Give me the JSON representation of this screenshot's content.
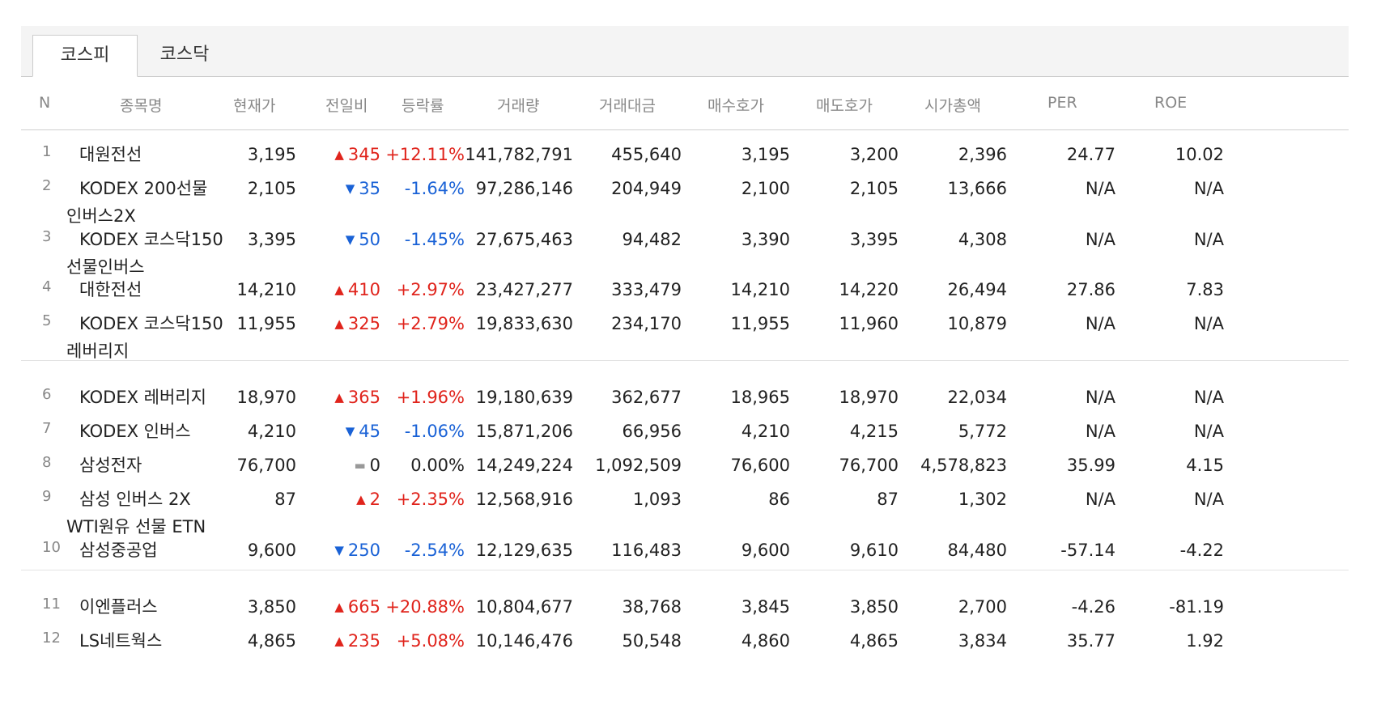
{
  "tabs": [
    {
      "label": "코스피",
      "active": true
    },
    {
      "label": "코스닥",
      "active": false
    }
  ],
  "columns": [
    "N",
    "종목명",
    "현재가",
    "전일비",
    "등락률",
    "거래량",
    "거래대금",
    "매수호가",
    "매도호가",
    "시가총액",
    "PER",
    "ROE"
  ],
  "colors": {
    "up": "#e0241c",
    "down": "#1a62d6",
    "flat_arrow": "#999999"
  },
  "arrow_icons": {
    "up": "▲",
    "down": "▼",
    "flat": "▬"
  },
  "rows": [
    {
      "n": "1",
      "name": [
        "대원전선"
      ],
      "price": "3,195",
      "dir": "up",
      "change": "345",
      "rate": "+12.11%",
      "volume": "141,782,791",
      "amount": "455,640",
      "bid": "3,195",
      "ask": "3,200",
      "mcap": "2,396",
      "per": "24.77",
      "roe": "10.02"
    },
    {
      "n": "2",
      "name": [
        "KODEX 200선물",
        "인버스2X"
      ],
      "price": "2,105",
      "dir": "down",
      "change": "35",
      "rate": "-1.64%",
      "volume": "97,286,146",
      "amount": "204,949",
      "bid": "2,100",
      "ask": "2,105",
      "mcap": "13,666",
      "per": "N/A",
      "roe": "N/A"
    },
    {
      "n": "3",
      "name": [
        "KODEX 코스닥150",
        "선물인버스"
      ],
      "price": "3,395",
      "dir": "down",
      "change": "50",
      "rate": "-1.45%",
      "volume": "27,675,463",
      "amount": "94,482",
      "bid": "3,390",
      "ask": "3,395",
      "mcap": "4,308",
      "per": "N/A",
      "roe": "N/A"
    },
    {
      "n": "4",
      "name": [
        "대한전선"
      ],
      "price": "14,210",
      "dir": "up",
      "change": "410",
      "rate": "+2.97%",
      "volume": "23,427,277",
      "amount": "333,479",
      "bid": "14,210",
      "ask": "14,220",
      "mcap": "26,494",
      "per": "27.86",
      "roe": "7.83"
    },
    {
      "n": "5",
      "name": [
        "KODEX 코스닥150",
        "레버리지"
      ],
      "price": "11,955",
      "dir": "up",
      "change": "325",
      "rate": "+2.79%",
      "volume": "19,833,630",
      "amount": "234,170",
      "bid": "11,955",
      "ask": "11,960",
      "mcap": "10,879",
      "per": "N/A",
      "roe": "N/A"
    },
    {
      "n": "6",
      "name": [
        "KODEX 레버리지"
      ],
      "price": "18,970",
      "dir": "up",
      "change": "365",
      "rate": "+1.96%",
      "volume": "19,180,639",
      "amount": "362,677",
      "bid": "18,965",
      "ask": "18,970",
      "mcap": "22,034",
      "per": "N/A",
      "roe": "N/A"
    },
    {
      "n": "7",
      "name": [
        "KODEX 인버스"
      ],
      "price": "4,210",
      "dir": "down",
      "change": "45",
      "rate": "-1.06%",
      "volume": "15,871,206",
      "amount": "66,956",
      "bid": "4,210",
      "ask": "4,215",
      "mcap": "5,772",
      "per": "N/A",
      "roe": "N/A"
    },
    {
      "n": "8",
      "name": [
        "삼성전자"
      ],
      "price": "76,700",
      "dir": "flat",
      "change": "0",
      "rate": "0.00%",
      "volume": "14,249,224",
      "amount": "1,092,509",
      "bid": "76,600",
      "ask": "76,700",
      "mcap": "4,578,823",
      "per": "35.99",
      "roe": "4.15"
    },
    {
      "n": "9",
      "name": [
        "삼성 인버스 2X",
        "WTI원유 선물 ETN"
      ],
      "price": "87",
      "dir": "up",
      "change": "2",
      "rate": "+2.35%",
      "volume": "12,568,916",
      "amount": "1,093",
      "bid": "86",
      "ask": "87",
      "mcap": "1,302",
      "per": "N/A",
      "roe": "N/A"
    },
    {
      "n": "10",
      "name": [
        "삼성중공업"
      ],
      "price": "9,600",
      "dir": "down",
      "change": "250",
      "rate": "-2.54%",
      "volume": "12,129,635",
      "amount": "116,483",
      "bid": "9,600",
      "ask": "9,610",
      "mcap": "84,480",
      "per": "-57.14",
      "roe": "-4.22"
    },
    {
      "n": "11",
      "name": [
        "이엔플러스"
      ],
      "price": "3,850",
      "dir": "up",
      "change": "665",
      "rate": "+20.88%",
      "volume": "10,804,677",
      "amount": "38,768",
      "bid": "3,845",
      "ask": "3,850",
      "mcap": "2,700",
      "per": "-4.26",
      "roe": "-81.19"
    },
    {
      "n": "12",
      "name": [
        "LS네트웍스"
      ],
      "price": "4,865",
      "dir": "up",
      "change": "235",
      "rate": "+5.08%",
      "volume": "10,146,476",
      "amount": "50,548",
      "bid": "4,860",
      "ask": "4,865",
      "mcap": "3,834",
      "per": "35.77",
      "roe": "1.92"
    }
  ]
}
